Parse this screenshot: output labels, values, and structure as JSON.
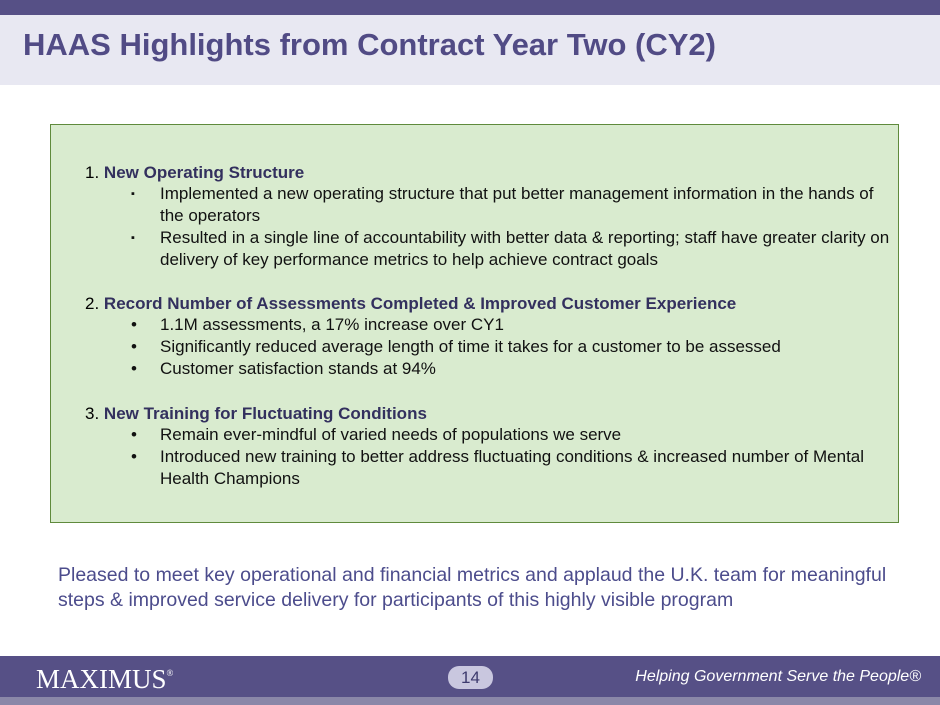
{
  "title": "HAAS Highlights from Contract Year Two (CY2)",
  "sections": [
    {
      "number": "1.",
      "heading": "New Operating Structure",
      "bullet": "▪",
      "items": [
        "Implemented a new operating structure that put better management information in the hands of the operators",
        "Resulted in a single line of accountability with better data & reporting; staff have greater clarity on delivery of key performance metrics to help achieve contract goals"
      ]
    },
    {
      "number": "2.",
      "heading": "Record Number of Assessments Completed & Improved Customer Experience",
      "bullet": "•",
      "items": [
        "1.1M assessments, a 17% increase over CY1",
        "Significantly reduced average length of time it takes for a customer to be assessed",
        "Customer satisfaction stands at 94%"
      ]
    },
    {
      "number": "3.",
      "heading": "New Training for Fluctuating Conditions",
      "bullet": "•",
      "items": [
        "Remain ever-mindful of varied needs of populations we serve",
        "Introduced new training to better address fluctuating conditions & increased number of Mental Health Champions"
      ]
    }
  ],
  "summary": "Pleased to meet key operational and financial metrics and applaud the U.K. team for meaningful steps & improved service delivery for participants of this highly visible program",
  "footer": {
    "logo": "MAXIMUS",
    "logo_mark": "®",
    "page_number": "14",
    "tagline": "Helping Government Serve the People®"
  },
  "colors": {
    "brand_purple": "#565086",
    "title": "#514b85",
    "box_fill": "#d9ebcf",
    "box_border": "#5f8a3c"
  }
}
